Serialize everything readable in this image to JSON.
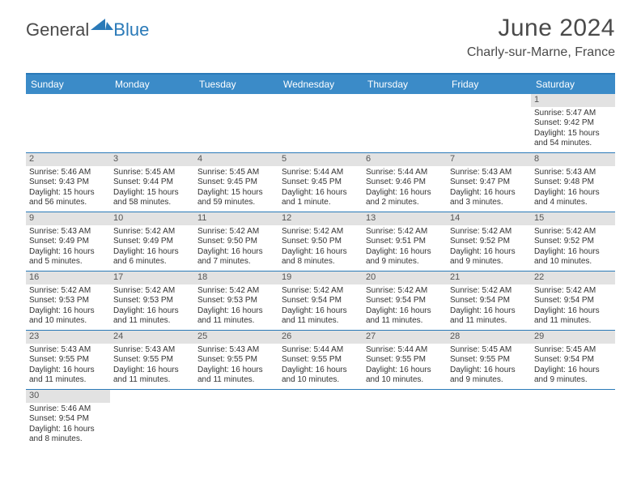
{
  "brand": {
    "general": "General",
    "blue": "Blue"
  },
  "title": "June 2024",
  "location": "Charly-sur-Marne, France",
  "colors": {
    "accent": "#3b8bc8",
    "rule": "#2a7ab8",
    "bar": "#e2e2e2"
  },
  "dayNames": [
    "Sunday",
    "Monday",
    "Tuesday",
    "Wednesday",
    "Thursday",
    "Friday",
    "Saturday"
  ],
  "weeks": [
    [
      null,
      null,
      null,
      null,
      null,
      null,
      {
        "n": "1",
        "sr": "Sunrise: 5:47 AM",
        "ss": "Sunset: 9:42 PM",
        "dl": "Daylight: 15 hours and 54 minutes."
      }
    ],
    [
      {
        "n": "2",
        "sr": "Sunrise: 5:46 AM",
        "ss": "Sunset: 9:43 PM",
        "dl": "Daylight: 15 hours and 56 minutes."
      },
      {
        "n": "3",
        "sr": "Sunrise: 5:45 AM",
        "ss": "Sunset: 9:44 PM",
        "dl": "Daylight: 15 hours and 58 minutes."
      },
      {
        "n": "4",
        "sr": "Sunrise: 5:45 AM",
        "ss": "Sunset: 9:45 PM",
        "dl": "Daylight: 15 hours and 59 minutes."
      },
      {
        "n": "5",
        "sr": "Sunrise: 5:44 AM",
        "ss": "Sunset: 9:45 PM",
        "dl": "Daylight: 16 hours and 1 minute."
      },
      {
        "n": "6",
        "sr": "Sunrise: 5:44 AM",
        "ss": "Sunset: 9:46 PM",
        "dl": "Daylight: 16 hours and 2 minutes."
      },
      {
        "n": "7",
        "sr": "Sunrise: 5:43 AM",
        "ss": "Sunset: 9:47 PM",
        "dl": "Daylight: 16 hours and 3 minutes."
      },
      {
        "n": "8",
        "sr": "Sunrise: 5:43 AM",
        "ss": "Sunset: 9:48 PM",
        "dl": "Daylight: 16 hours and 4 minutes."
      }
    ],
    [
      {
        "n": "9",
        "sr": "Sunrise: 5:43 AM",
        "ss": "Sunset: 9:49 PM",
        "dl": "Daylight: 16 hours and 5 minutes."
      },
      {
        "n": "10",
        "sr": "Sunrise: 5:42 AM",
        "ss": "Sunset: 9:49 PM",
        "dl": "Daylight: 16 hours and 6 minutes."
      },
      {
        "n": "11",
        "sr": "Sunrise: 5:42 AM",
        "ss": "Sunset: 9:50 PM",
        "dl": "Daylight: 16 hours and 7 minutes."
      },
      {
        "n": "12",
        "sr": "Sunrise: 5:42 AM",
        "ss": "Sunset: 9:50 PM",
        "dl": "Daylight: 16 hours and 8 minutes."
      },
      {
        "n": "13",
        "sr": "Sunrise: 5:42 AM",
        "ss": "Sunset: 9:51 PM",
        "dl": "Daylight: 16 hours and 9 minutes."
      },
      {
        "n": "14",
        "sr": "Sunrise: 5:42 AM",
        "ss": "Sunset: 9:52 PM",
        "dl": "Daylight: 16 hours and 9 minutes."
      },
      {
        "n": "15",
        "sr": "Sunrise: 5:42 AM",
        "ss": "Sunset: 9:52 PM",
        "dl": "Daylight: 16 hours and 10 minutes."
      }
    ],
    [
      {
        "n": "16",
        "sr": "Sunrise: 5:42 AM",
        "ss": "Sunset: 9:53 PM",
        "dl": "Daylight: 16 hours and 10 minutes."
      },
      {
        "n": "17",
        "sr": "Sunrise: 5:42 AM",
        "ss": "Sunset: 9:53 PM",
        "dl": "Daylight: 16 hours and 11 minutes."
      },
      {
        "n": "18",
        "sr": "Sunrise: 5:42 AM",
        "ss": "Sunset: 9:53 PM",
        "dl": "Daylight: 16 hours and 11 minutes."
      },
      {
        "n": "19",
        "sr": "Sunrise: 5:42 AM",
        "ss": "Sunset: 9:54 PM",
        "dl": "Daylight: 16 hours and 11 minutes."
      },
      {
        "n": "20",
        "sr": "Sunrise: 5:42 AM",
        "ss": "Sunset: 9:54 PM",
        "dl": "Daylight: 16 hours and 11 minutes."
      },
      {
        "n": "21",
        "sr": "Sunrise: 5:42 AM",
        "ss": "Sunset: 9:54 PM",
        "dl": "Daylight: 16 hours and 11 minutes."
      },
      {
        "n": "22",
        "sr": "Sunrise: 5:42 AM",
        "ss": "Sunset: 9:54 PM",
        "dl": "Daylight: 16 hours and 11 minutes."
      }
    ],
    [
      {
        "n": "23",
        "sr": "Sunrise: 5:43 AM",
        "ss": "Sunset: 9:55 PM",
        "dl": "Daylight: 16 hours and 11 minutes."
      },
      {
        "n": "24",
        "sr": "Sunrise: 5:43 AM",
        "ss": "Sunset: 9:55 PM",
        "dl": "Daylight: 16 hours and 11 minutes."
      },
      {
        "n": "25",
        "sr": "Sunrise: 5:43 AM",
        "ss": "Sunset: 9:55 PM",
        "dl": "Daylight: 16 hours and 11 minutes."
      },
      {
        "n": "26",
        "sr": "Sunrise: 5:44 AM",
        "ss": "Sunset: 9:55 PM",
        "dl": "Daylight: 16 hours and 10 minutes."
      },
      {
        "n": "27",
        "sr": "Sunrise: 5:44 AM",
        "ss": "Sunset: 9:55 PM",
        "dl": "Daylight: 16 hours and 10 minutes."
      },
      {
        "n": "28",
        "sr": "Sunrise: 5:45 AM",
        "ss": "Sunset: 9:55 PM",
        "dl": "Daylight: 16 hours and 9 minutes."
      },
      {
        "n": "29",
        "sr": "Sunrise: 5:45 AM",
        "ss": "Sunset: 9:54 PM",
        "dl": "Daylight: 16 hours and 9 minutes."
      }
    ],
    [
      {
        "n": "30",
        "sr": "Sunrise: 5:46 AM",
        "ss": "Sunset: 9:54 PM",
        "dl": "Daylight: 16 hours and 8 minutes."
      },
      null,
      null,
      null,
      null,
      null,
      null
    ]
  ]
}
